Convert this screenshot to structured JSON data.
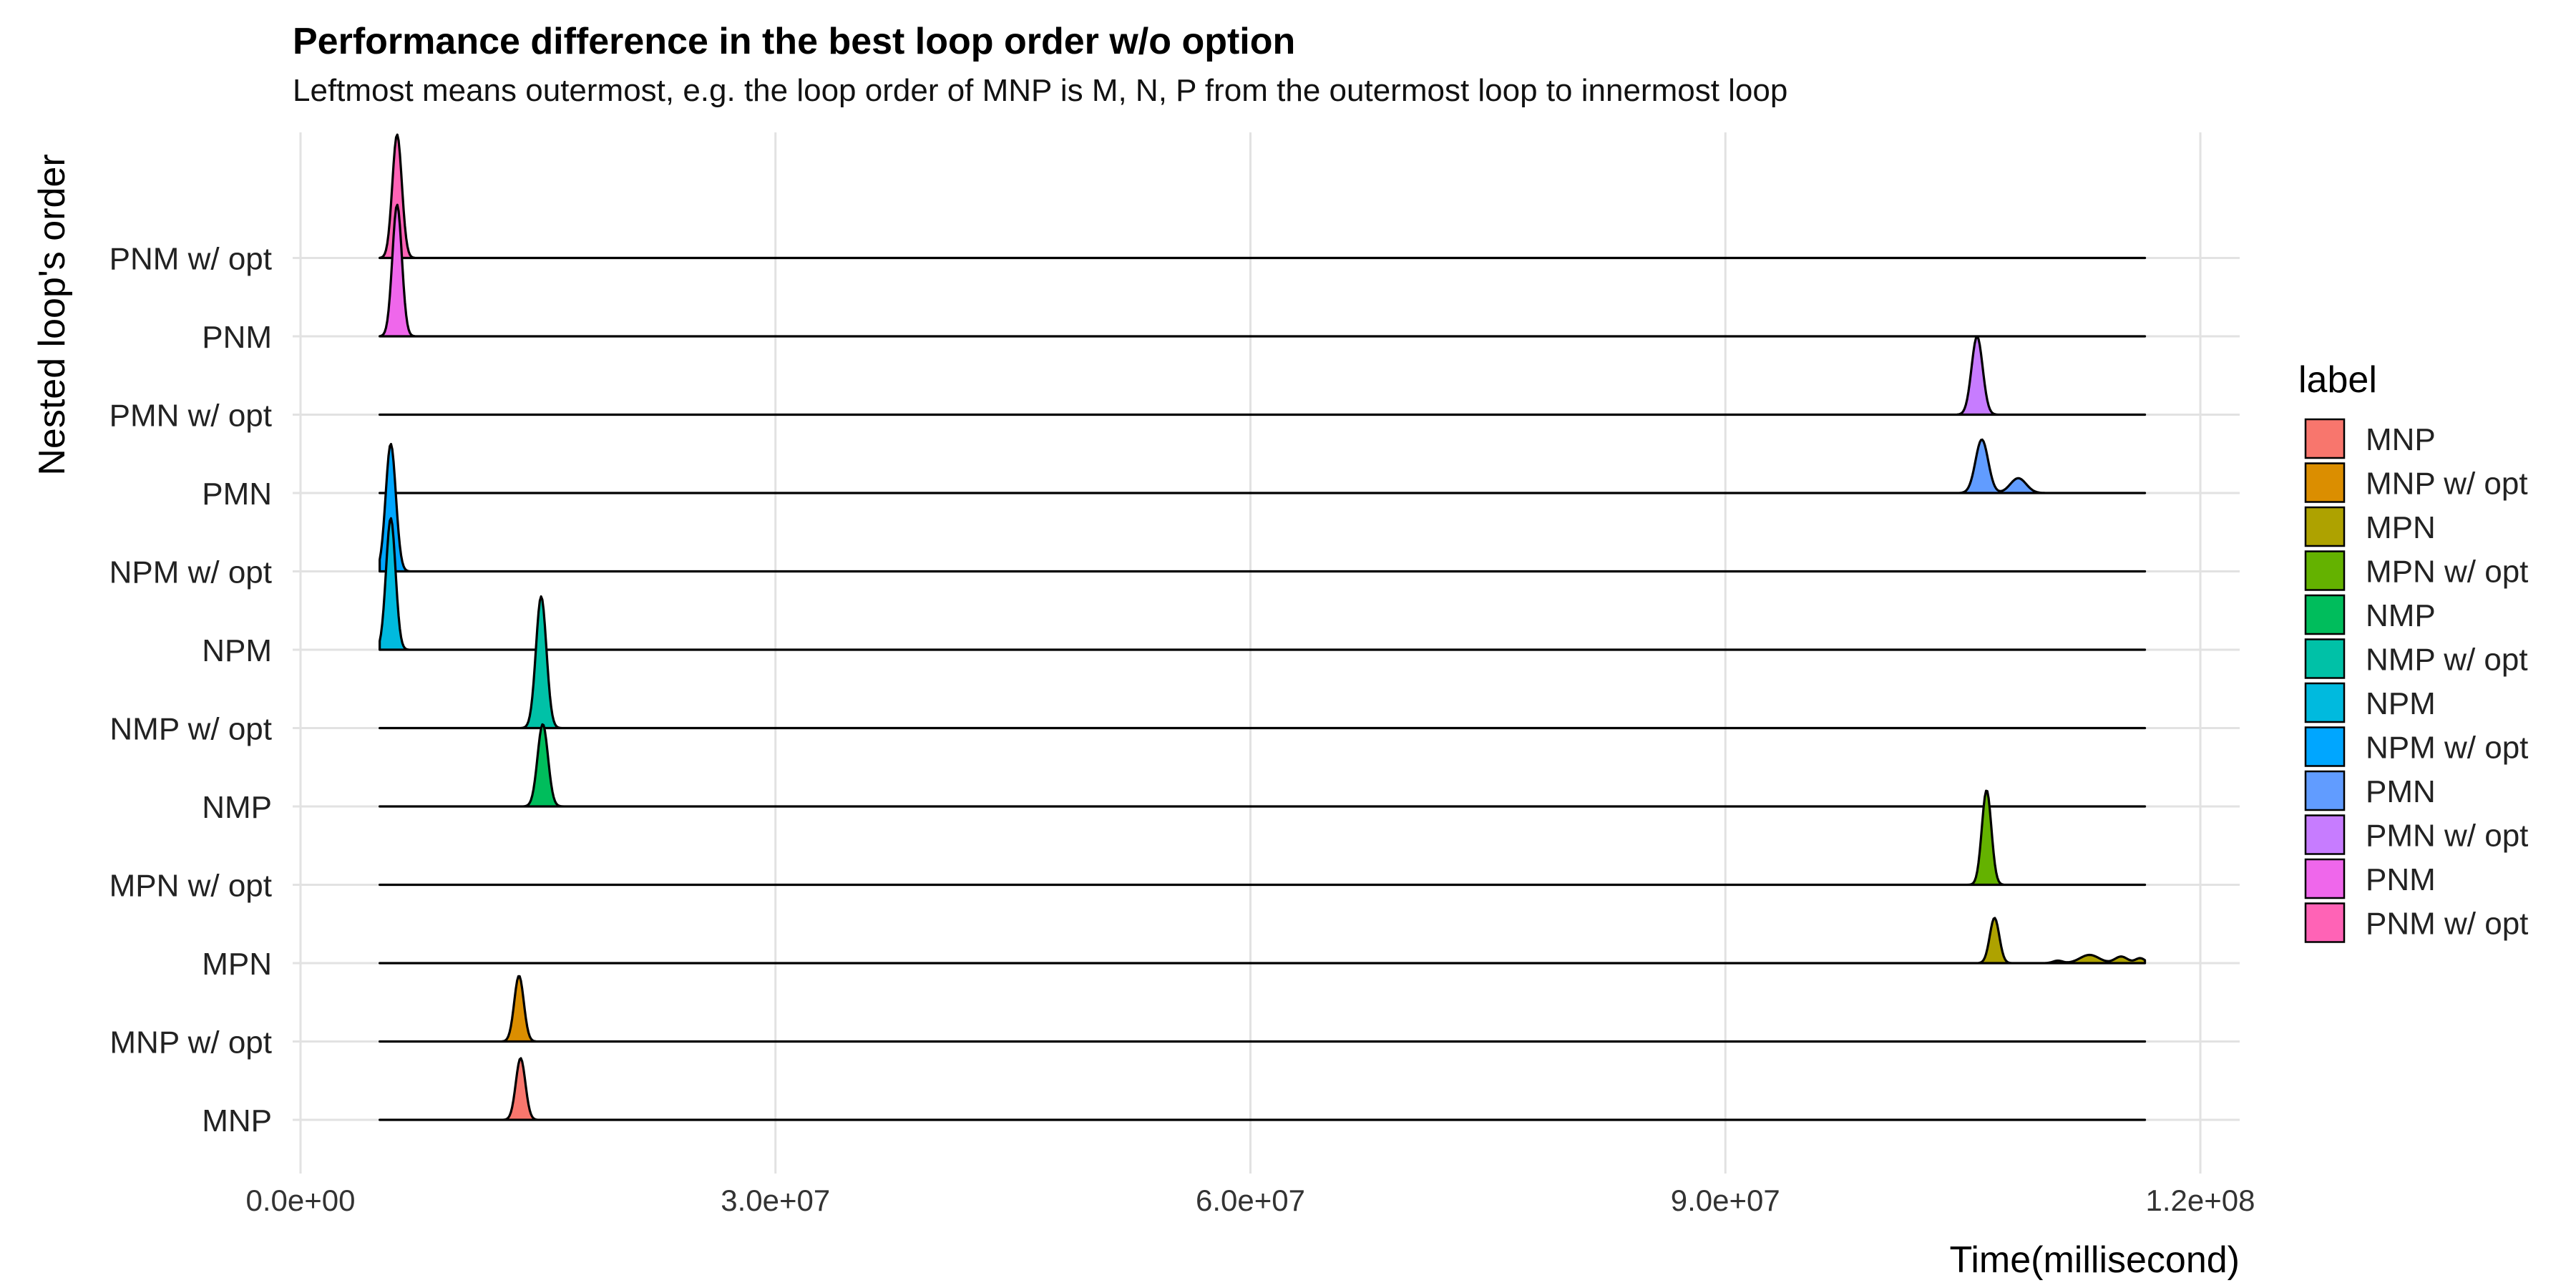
{
  "chart_data": {
    "type": "area",
    "title": "Performance difference in the best loop order w/o option",
    "subtitle": "Leftmost means outermost, e.g. the loop order of MNP is M, N, P from the outermost loop to innermost loop",
    "xlabel": "Time(millisecond)",
    "ylabel": "Nested loop's order",
    "xlim": [
      0,
      122000000
    ],
    "x_ticks": [
      0,
      30000000,
      60000000,
      90000000,
      120000000
    ],
    "x_tick_labels": [
      "0.0e+00",
      "3.0e+07",
      "6.0e+07",
      "9.0e+07",
      "1.2e+08"
    ],
    "grid": true,
    "legend": {
      "title": "label",
      "position": "right"
    },
    "ridge_x_range": [
      5000000,
      116500000
    ],
    "series": [
      {
        "name": "MNP",
        "color": "#F8766D",
        "peaks": [
          {
            "x": 13900000,
            "height": 0.75,
            "sd": 300000
          }
        ]
      },
      {
        "name": "MNP w/ opt",
        "color": "#E18A00",
        "peaks": [
          {
            "x": 13800000,
            "height": 0.8,
            "sd": 300000
          }
        ]
      },
      {
        "name": "MPN",
        "color": "#BE9C00",
        "peaks": [
          {
            "x": 107000000,
            "height": 0.55,
            "sd": 300000
          },
          {
            "x": 111000000,
            "height": 0.03,
            "sd": 300000
          },
          {
            "x": 113000000,
            "height": 0.1,
            "sd": 600000
          },
          {
            "x": 115000000,
            "height": 0.08,
            "sd": 400000
          },
          {
            "x": 116200000,
            "height": 0.06,
            "sd": 300000
          }
        ]
      },
      {
        "name": "MPN w/ opt",
        "color": "#8CAB00",
        "peaks": [
          {
            "x": 106500000,
            "height": 1.15,
            "sd": 300000
          }
        ]
      },
      {
        "name": "NMP",
        "color": "#24B700",
        "peaks": [
          {
            "x": 15300000,
            "height": 1.0,
            "sd": 330000
          }
        ]
      },
      {
        "name": "NMP w/ opt",
        "color": "#00BE70",
        "peaks": [
          {
            "x": 15200000,
            "height": 1.6,
            "sd": 330000
          }
        ]
      },
      {
        "name": "NPM",
        "color": "#00C1AB",
        "peaks": [
          {
            "x": 5700000,
            "height": 1.6,
            "sd": 300000
          }
        ]
      },
      {
        "name": "NPM w/ opt",
        "color": "#00BBDA",
        "peaks": [
          {
            "x": 5700000,
            "height": 1.55,
            "sd": 320000
          }
        ]
      },
      {
        "name": "PMN",
        "color": "#00ACFC",
        "peaks": [
          {
            "x": 106200000,
            "height": 0.65,
            "sd": 400000
          },
          {
            "x": 108500000,
            "height": 0.18,
            "sd": 500000
          }
        ]
      },
      {
        "name": "PMN w/ opt",
        "color": "#8B93FF",
        "peaks": [
          {
            "x": 105900000,
            "height": 0.95,
            "sd": 350000
          }
        ]
      },
      {
        "name": "PNM",
        "color": "#D575FE",
        "peaks": [
          {
            "x": 6100000,
            "height": 1.6,
            "sd": 300000
          }
        ]
      },
      {
        "name": "PNM w/ opt",
        "color": "#F962DD",
        "peaks": [
          {
            "x": 6100000,
            "height": 1.5,
            "sd": 300000
          }
        ]
      }
    ],
    "ridge_fill_colors": {
      "MNP": "#F8766D",
      "MNP w/ opt": "#DB8E00",
      "MPN": "#AEA200",
      "MPN w/ opt": "#64B200",
      "NMP": "#00BD5C",
      "NMP w/ opt": "#00C1A7",
      "NPM": "#00BADE",
      "NPM w/ opt": "#00A6FF",
      "PMN": "#619CFF",
      "PMN w/ opt": "#C77CFF",
      "PNM": "#EF67EB",
      "PNM w/ opt": "#FF63B6"
    }
  }
}
